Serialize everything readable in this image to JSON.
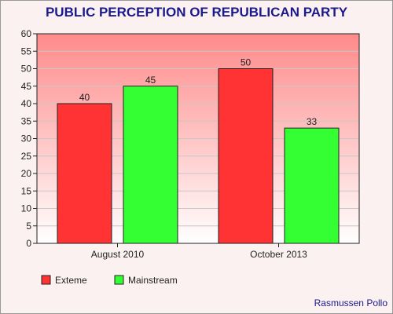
{
  "chart_data": {
    "type": "bar",
    "title": "PUBLIC PERCEPTION OF REPUBLICAN PARTY",
    "categories": [
      "August 2010",
      "October 2013"
    ],
    "series": [
      {
        "name": "Exteme",
        "values": [
          40,
          50
        ],
        "color": "#ff3333"
      },
      {
        "name": "Mainstream",
        "values": [
          45,
          33
        ],
        "color": "#33ff33"
      }
    ],
    "ylim": [
      0,
      60
    ],
    "yticks": [
      0,
      5,
      10,
      15,
      20,
      25,
      30,
      35,
      40,
      45,
      50,
      55,
      60
    ],
    "grid": true,
    "legend_position": "bottom-left",
    "plot_gradient": [
      "#ff8a8a",
      "#ffffff"
    ],
    "source": "Rasmussen Pollo"
  }
}
